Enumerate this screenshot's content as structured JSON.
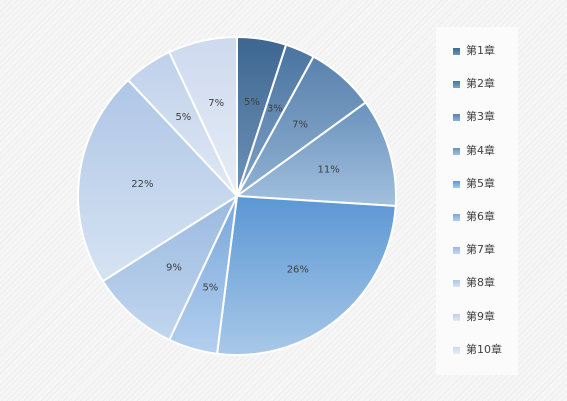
{
  "chart_data": {
    "type": "pie",
    "categories": [
      "第1章",
      "第2章",
      "第3章",
      "第4章",
      "第5章",
      "第6章",
      "第7章",
      "第8章",
      "第9章",
      "第10章"
    ],
    "values": [
      5,
      3,
      7,
      11,
      26,
      5,
      9,
      22,
      5,
      7
    ],
    "data_labels": [
      "5%",
      "3%",
      "7%",
      "11%",
      "26%",
      "5%",
      "9%",
      "22%",
      "5%",
      "7%"
    ],
    "legend_position": "right",
    "series_colors": [
      [
        "#3d6690",
        "#6f93b8"
      ],
      [
        "#4a74a0",
        "#7fa2c6"
      ],
      [
        "#5a82ad",
        "#8fb0d2"
      ],
      [
        "#6a92bd",
        "#a2c0de"
      ],
      [
        "#5b97d4",
        "#a8c8e8"
      ],
      [
        "#7aa7dc",
        "#b3cfee"
      ],
      [
        "#9ab9e0",
        "#c2d6ee"
      ],
      [
        "#afc6e6",
        "#d6e3f3"
      ],
      [
        "#bfd0ea",
        "#e0e9f5"
      ],
      [
        "#cdd9ee",
        "#e6edf7"
      ]
    ]
  }
}
